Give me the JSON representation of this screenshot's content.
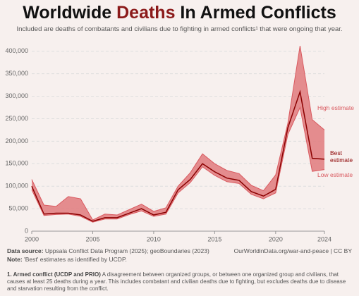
{
  "chart_data": {
    "type": "band-line",
    "title": [
      "Worldwide ",
      "Deaths",
      " In Armed Conflicts"
    ],
    "subtitle": "Included are deaths of combatants and civilians due to fighting in armed conflicts¹ that were ongoing that year.",
    "x": [
      2000,
      2001,
      2002,
      2003,
      2004,
      2005,
      2006,
      2007,
      2008,
      2009,
      2010,
      2011,
      2012,
      2013,
      2014,
      2015,
      2016,
      2017,
      2018,
      2019,
      2020,
      2021,
      2022,
      2023,
      2024
    ],
    "series": [
      {
        "name": "High estimate",
        "color": "#d9595f",
        "values": [
          115000,
          58000,
          55000,
          77000,
          72000,
          25000,
          38000,
          36000,
          48000,
          60000,
          44000,
          52000,
          100000,
          130000,
          172000,
          150000,
          135000,
          128000,
          102000,
          90000,
          125000,
          240000,
          412000,
          248000,
          225000
        ]
      },
      {
        "name": "Best estimate",
        "color": "#8b0000",
        "values": [
          100000,
          38000,
          40000,
          40000,
          36000,
          22000,
          30000,
          30000,
          40000,
          50000,
          36000,
          42000,
          92000,
          115000,
          150000,
          132000,
          118000,
          113000,
          88000,
          78000,
          93000,
          230000,
          310000,
          162000,
          160000
        ]
      },
      {
        "name": "Low estimate",
        "color": "#d9595f",
        "values": [
          92000,
          35000,
          37000,
          38000,
          33000,
          20000,
          27000,
          27000,
          37000,
          45000,
          33000,
          38000,
          85000,
          108000,
          143000,
          124000,
          110000,
          106000,
          82000,
          72000,
          85000,
          215000,
          275000,
          133000,
          137000
        ]
      }
    ],
    "band_color": "#e07a7c",
    "xlim": [
      2000,
      2024
    ],
    "xticks": [
      2000,
      2005,
      2010,
      2015,
      2020,
      2024
    ],
    "ylim": [
      0,
      420000
    ],
    "yticks": [
      0,
      {
        "value": 50000,
        "label": "50,000"
      },
      {
        "value": 100000,
        "label": "100,000"
      },
      {
        "value": 150000,
        "label": "150,000"
      },
      {
        "value": 200000,
        "label": "200,000"
      },
      {
        "value": 250000,
        "label": "250,000"
      },
      {
        "value": 300000,
        "label": "300,000"
      },
      {
        "value": 350000,
        "label": "350,000"
      },
      {
        "value": 400000,
        "label": "400,000"
      }
    ],
    "grid": true
  },
  "footer": {
    "source_label": "Data source:",
    "source": "Uppsala Conflict Data Program (2025); geoBoundaries (2023)",
    "url": "OurWorldinData.org/war-and-peace | CC BY",
    "note_label": "Note:",
    "note": "'Best' estimates as identified by UCDP.",
    "footnote_label": "1. Armed conflict (UCDP and PRIO)",
    "footnote": "A disagreement between organized groups, or between one organized group and civilians, that causes at least 25 deaths during a year. This includes combatant and civilian deaths due to fighting, but excludes deaths due to disease and starvation resulting from the conflict."
  }
}
